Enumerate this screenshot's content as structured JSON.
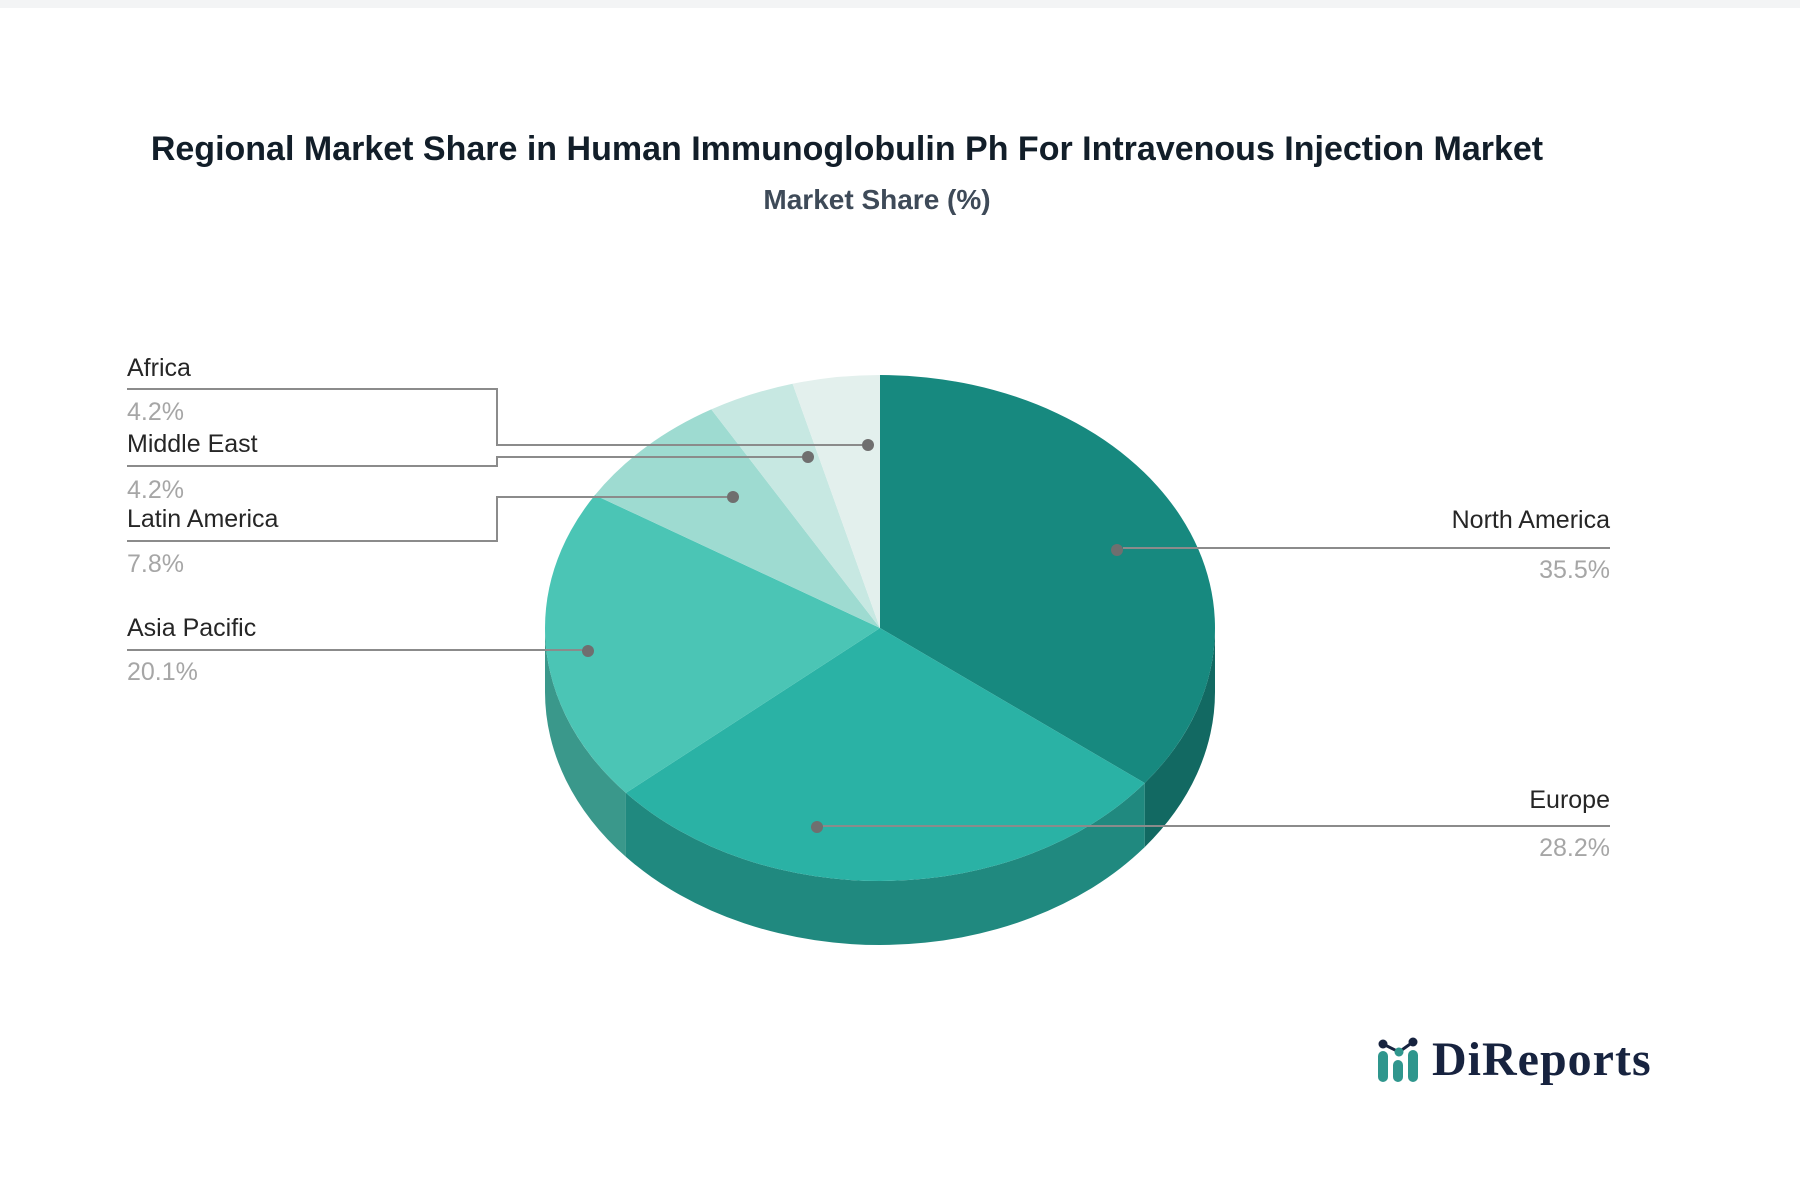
{
  "header": {
    "title": "Regional Market Share in Human Immunoglobulin Ph For Intravenous Injection Market",
    "subtitle": "Market Share (%)"
  },
  "chart_data": {
    "type": "pie",
    "style": "3d-depth-pie",
    "start_angle_deg": 0,
    "direction": "clockwise",
    "labels": [
      "North America",
      "Europe",
      "Asia Pacific",
      "Latin America",
      "Middle East",
      "Africa"
    ],
    "values": [
      35.5,
      28.2,
      20.1,
      7.8,
      4.2,
      4.2
    ],
    "display_percents": [
      "35.5%",
      "28.2%",
      "20.1%",
      "7.8%",
      "4.2%",
      "4.2%"
    ],
    "colors": [
      "#17897f",
      "#2ab2a5",
      "#4bc5b5",
      "#9edbd1",
      "#c7e8e2",
      "#e3f0ed"
    ],
    "title": "Regional Market Share in Human Immunoglobulin Ph For Intravenous Injection Market",
    "subtitle": "Market Share (%)",
    "legend": "none",
    "annotation_style": "callout labels with leader lines and dots"
  },
  "callouts": {
    "africa": {
      "label": "Africa",
      "pct": "4.2%"
    },
    "middle_east": {
      "label": "Middle East",
      "pct": "4.2%"
    },
    "latin_america": {
      "label": "Latin America",
      "pct": "7.8%"
    },
    "asia_pacific": {
      "label": "Asia Pacific",
      "pct": "20.1%"
    },
    "north_america": {
      "label": "North America",
      "pct": "35.5%"
    },
    "europe": {
      "label": "Europe",
      "pct": "28.2%"
    }
  },
  "logo": {
    "text": "DiReports",
    "icon": "mini-bar-line-chart-icon"
  },
  "palette": {
    "leader_line": "#8b8b8b",
    "leader_dot": "#6f6f6f",
    "label_text": "#262626",
    "pct_text": "#a6a6a6",
    "title_text": "#121e29",
    "subtitle_text": "#3e4a58",
    "logo_text": "#17233f",
    "logo_icon": "#2f968d",
    "background": "#ffffff"
  }
}
